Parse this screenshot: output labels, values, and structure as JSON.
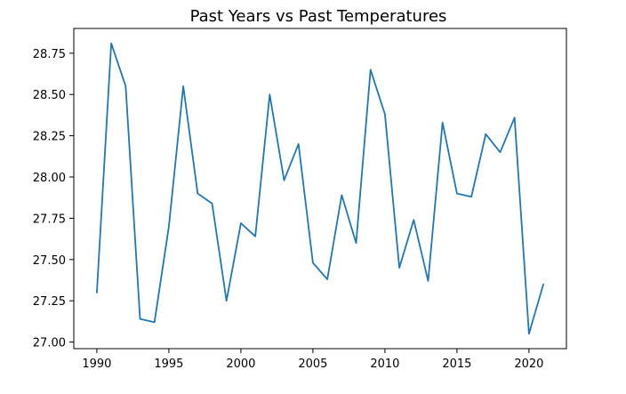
{
  "chart_data": {
    "type": "line",
    "title": "Past Years vs Past Temperatures",
    "xlabel": "",
    "ylabel": "",
    "xlim": [
      1988.4,
      2022.6
    ],
    "ylim": [
      26.96,
      28.9
    ],
    "x_ticks": [
      1990,
      1995,
      2000,
      2005,
      2010,
      2015,
      2020
    ],
    "x_tick_labels": [
      "1990",
      "1995",
      "2000",
      "2005",
      "2010",
      "2015",
      "2020"
    ],
    "y_ticks": [
      27.0,
      27.25,
      27.5,
      27.75,
      28.0,
      28.25,
      28.5,
      28.75
    ],
    "y_tick_labels": [
      "27.00",
      "27.25",
      "27.50",
      "27.75",
      "28.00",
      "28.25",
      "28.50",
      "28.75"
    ],
    "grid": false,
    "legend": "none",
    "series": [
      {
        "color": "#1f77b4",
        "x": [
          1990,
          1991,
          1992,
          1993,
          1994,
          1995,
          1996,
          1997,
          1998,
          1999,
          2000,
          2001,
          2002,
          2003,
          2004,
          2005,
          2006,
          2007,
          2008,
          2009,
          2010,
          2011,
          2012,
          2013,
          2014,
          2015,
          2016,
          2017,
          2018,
          2019,
          2020,
          2021
        ],
        "y": [
          27.3,
          28.81,
          28.55,
          27.14,
          27.12,
          27.7,
          28.55,
          27.9,
          27.84,
          27.25,
          27.72,
          27.64,
          28.5,
          27.98,
          28.2,
          27.48,
          27.38,
          27.89,
          27.6,
          28.65,
          28.38,
          27.45,
          27.74,
          27.37,
          28.33,
          27.9,
          27.88,
          28.26,
          28.15,
          28.36,
          27.05,
          27.35
        ]
      }
    ]
  }
}
